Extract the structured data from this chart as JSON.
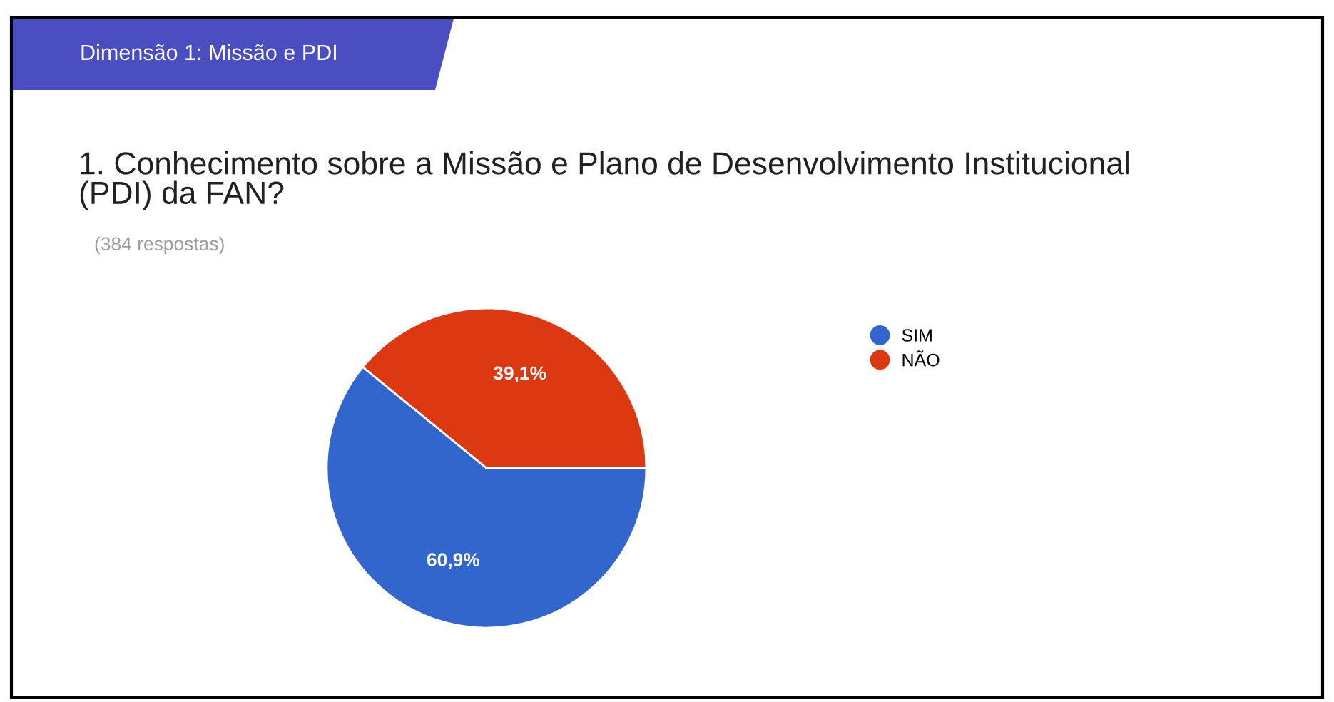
{
  "chart_data": {
    "type": "pie",
    "title": "1. Conhecimento sobre a Missão e Plano de Desenvolvimento Institucional\n(PDI) da FAN?",
    "subtitle": "(384 respostas)",
    "annotations": [
      "Dimensão 1: Missão e PDI"
    ],
    "categories": [
      "SIM",
      "NÃO"
    ],
    "values": [
      60.9,
      39.1
    ],
    "value_labels": [
      "60,9%",
      "39,1%"
    ],
    "colors": [
      "#3366cc",
      "#dc3912"
    ],
    "legend": "right"
  }
}
